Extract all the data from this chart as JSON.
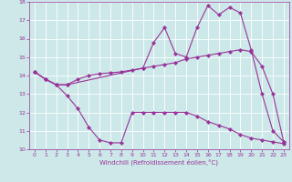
{
  "xlabel": "Windchill (Refroidissement éolien,°C)",
  "background_color": "#cce8e8",
  "line_color": "#993399",
  "grid_color": "#ffffff",
  "line1_x": [
    0,
    1,
    2,
    3,
    4,
    5,
    6,
    7,
    8,
    9,
    10,
    11,
    12,
    13,
    14,
    15,
    16,
    17,
    18,
    19,
    20,
    21,
    22,
    23
  ],
  "line1_y": [
    14.2,
    13.8,
    13.5,
    13.5,
    13.8,
    14.0,
    14.1,
    14.15,
    14.2,
    14.3,
    14.4,
    14.5,
    14.6,
    14.7,
    14.9,
    15.0,
    15.1,
    15.2,
    15.3,
    15.4,
    15.3,
    14.5,
    13.0,
    10.4
  ],
  "line2_x": [
    0,
    1,
    2,
    3,
    10,
    11,
    12,
    13,
    14,
    15,
    16,
    17,
    18,
    19,
    20,
    21,
    22,
    23
  ],
  "line2_y": [
    14.2,
    13.8,
    13.5,
    13.5,
    14.4,
    15.8,
    16.6,
    15.2,
    15.0,
    16.6,
    17.8,
    17.3,
    17.7,
    17.4,
    15.4,
    13.0,
    11.0,
    10.4
  ],
  "line3_x": [
    0,
    1,
    2,
    3,
    4,
    5,
    6,
    7,
    8,
    9,
    10,
    11,
    12,
    13,
    14,
    15,
    16,
    17,
    18,
    19,
    20,
    21,
    22,
    23
  ],
  "line3_y": [
    14.2,
    13.8,
    13.5,
    12.9,
    12.2,
    11.2,
    10.5,
    10.35,
    10.35,
    12.0,
    12.0,
    12.0,
    12.0,
    12.0,
    12.0,
    11.8,
    11.5,
    11.3,
    11.1,
    10.8,
    10.6,
    10.5,
    10.4,
    10.3
  ],
  "xlim": [
    -0.5,
    23.5
  ],
  "ylim": [
    10,
    18
  ],
  "xticks": [
    0,
    1,
    2,
    3,
    4,
    5,
    6,
    7,
    8,
    9,
    10,
    11,
    12,
    13,
    14,
    15,
    16,
    17,
    18,
    19,
    20,
    21,
    22,
    23
  ],
  "yticks": [
    10,
    11,
    12,
    13,
    14,
    15,
    16,
    17,
    18
  ]
}
